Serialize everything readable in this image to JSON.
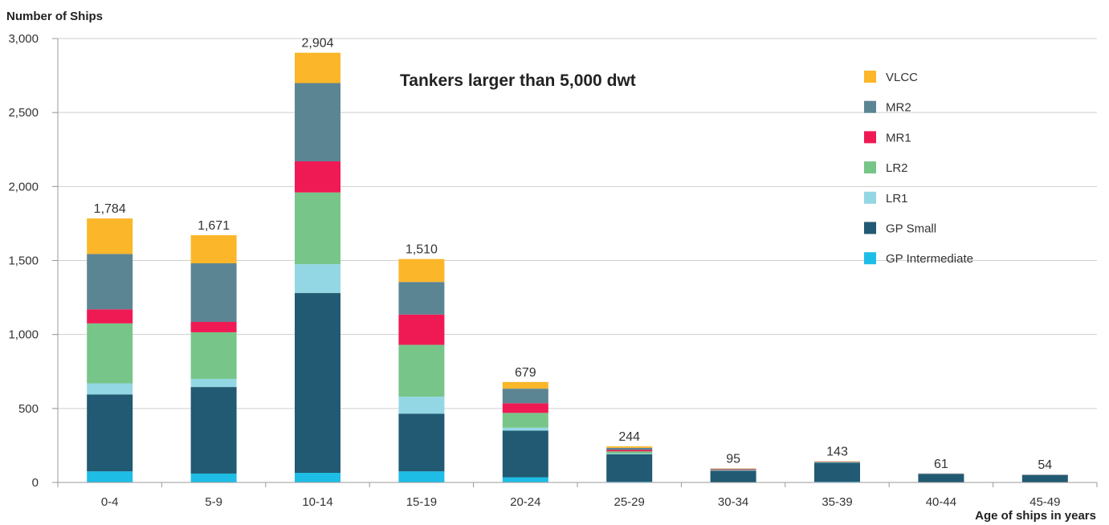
{
  "chart_data": {
    "type": "bar",
    "stacked": true,
    "title": "Tankers larger than 5,000 dwt",
    "ylabel": "Number of Ships",
    "xlabel": "Age of ships in years",
    "ylim": [
      0,
      3000
    ],
    "yticks": [
      0,
      500,
      1000,
      1500,
      2000,
      2500,
      3000
    ],
    "ytick_labels": [
      "0",
      "500",
      "1,000",
      "1,500",
      "2,000",
      "2,500",
      "3,000"
    ],
    "grid": true,
    "legend_position": "top-right",
    "categories": [
      "0-4",
      "5-9",
      "10-14",
      "15-19",
      "20-24",
      "25-29",
      "30-34",
      "35-39",
      "40-44",
      "45-49"
    ],
    "totals": [
      1784,
      1671,
      2904,
      1510,
      679,
      244,
      95,
      143,
      61,
      54
    ],
    "total_labels": [
      "1,784",
      "1,671",
      "2,904",
      "1,510",
      "679",
      "244",
      "95",
      "143",
      "61",
      "54"
    ],
    "series": [
      {
        "name": "GP Intermediate",
        "color": "#1dbde6",
        "values": [
          75,
          60,
          65,
          75,
          35,
          5,
          2,
          5,
          2,
          2
        ]
      },
      {
        "name": "GP Small",
        "color": "#215a72",
        "values": [
          520,
          585,
          1215,
          390,
          315,
          185,
          78,
          128,
          55,
          48
        ]
      },
      {
        "name": "LR1",
        "color": "#94d7e4",
        "values": [
          75,
          55,
          195,
          115,
          20,
          5,
          2,
          2,
          1,
          1
        ]
      },
      {
        "name": "LR2",
        "color": "#77c588",
        "values": [
          405,
          315,
          485,
          350,
          100,
          15,
          3,
          2,
          1,
          1
        ]
      },
      {
        "name": "MR1",
        "color": "#ef1a54",
        "values": [
          95,
          70,
          210,
          205,
          65,
          10,
          4,
          2,
          1,
          1
        ]
      },
      {
        "name": "MR2",
        "color": "#5c8594",
        "values": [
          374,
          396,
          529,
          220,
          99,
          14,
          4,
          2,
          1,
          1
        ]
      },
      {
        "name": "VLCC",
        "color": "#fbb629",
        "values": [
          240,
          190,
          205,
          155,
          45,
          10,
          2,
          2,
          0,
          0
        ]
      }
    ],
    "legend_order": [
      "VLCC",
      "MR2",
      "MR1",
      "LR2",
      "LR1",
      "GP Small",
      "GP Intermediate"
    ]
  }
}
